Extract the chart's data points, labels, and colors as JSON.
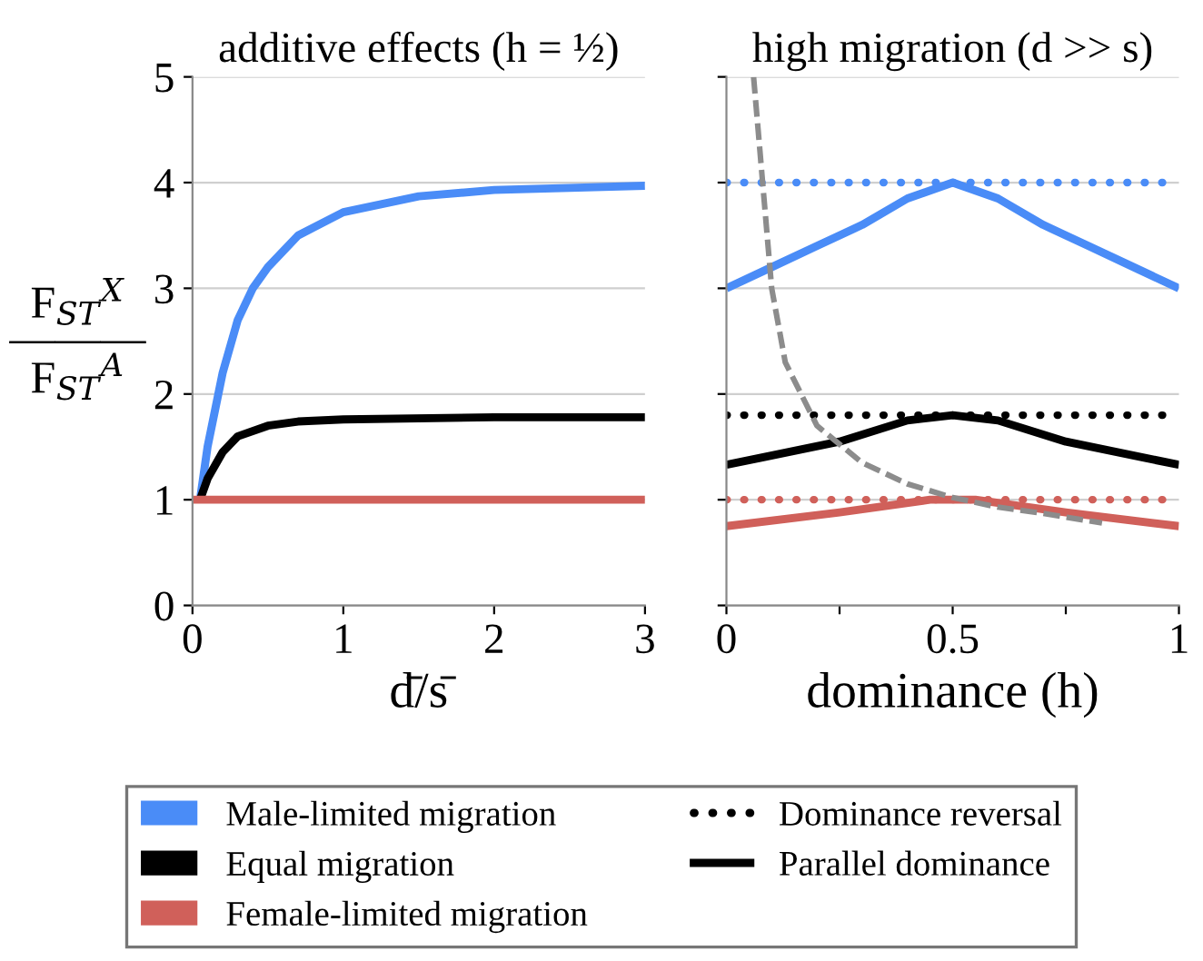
{
  "chart_data": [
    {
      "type": "line",
      "title": "additive effects (h = ½)",
      "xlabel": "d̄/s̄",
      "ylabel": "F$_{ST}$$^{X}$\n―――\nF$_{ST}$$^{A}$",
      "xlim": [
        0,
        3
      ],
      "xticks": [
        0,
        1,
        2,
        3
      ],
      "ylim": [
        0,
        5
      ],
      "yticks": [
        0,
        1,
        2,
        3,
        4,
        5
      ],
      "grid": "y",
      "legend": "bottom",
      "marker": "none",
      "series": [
        {
          "name": "Male-limited migration",
          "color": "#4a8cf7",
          "line_style": "solid",
          "x": [
            0.05,
            0.1,
            0.2,
            0.3,
            0.4,
            0.5,
            0.7,
            1,
            1.5,
            2,
            2.5,
            3
          ],
          "values": [
            1,
            1.5,
            2.2,
            2.7,
            3.0,
            3.2,
            3.5,
            3.72,
            3.87,
            3.93,
            3.95,
            3.97
          ]
        },
        {
          "name": "Equal migration",
          "color": "#000000",
          "line_style": "solid",
          "x": [
            0.05,
            0.1,
            0.2,
            0.3,
            0.5,
            0.7,
            1,
            2,
            3
          ],
          "values": [
            1,
            1.2,
            1.45,
            1.6,
            1.7,
            1.74,
            1.76,
            1.78,
            1.78
          ]
        },
        {
          "name": "Female-limited migration",
          "color": "#d0605a",
          "line_style": "solid",
          "x": [
            0,
            3
          ],
          "values": [
            1,
            1
          ]
        }
      ]
    },
    {
      "type": "line",
      "title": "high migration (d >> s)",
      "xlabel": "dominance (h)",
      "xlim": [
        0,
        1
      ],
      "xticks": [
        0,
        {
          "value": 0.25,
          "label": null
        },
        0.5,
        {
          "value": 0.75,
          "label": null
        },
        1
      ],
      "ylim": [
        0,
        5
      ],
      "yticks": [
        0,
        1,
        2,
        3,
        4,
        5
      ],
      "tick_labels": "x",
      "grid": "y",
      "legend": "bottom",
      "marker": "none",
      "series": [
        {
          "color": "#4a8cf7",
          "line_style": "dotted",
          "x": [
            0,
            1
          ],
          "values": [
            4,
            4
          ]
        },
        {
          "name": "Dominance reversal",
          "color": "#000000",
          "line_style": "dotted",
          "x": [
            0,
            1
          ],
          "values": [
            1.8,
            1.8
          ]
        },
        {
          "color": "#d0605a",
          "line_style": "dotted",
          "x": [
            0,
            1
          ],
          "values": [
            1,
            1
          ]
        },
        {
          "color": "#4a8cf7",
          "line_style": "solid",
          "x": [
            0,
            0.1,
            0.2,
            0.3,
            0.4,
            0.5,
            0.6,
            0.7,
            0.8,
            0.9,
            1
          ],
          "values": [
            3.0,
            3.2,
            3.4,
            3.6,
            3.85,
            4.0,
            3.85,
            3.6,
            3.4,
            3.2,
            3.0
          ]
        },
        {
          "name": "Parallel dominance",
          "color": "#000000",
          "line_style": "solid",
          "x": [
            0,
            0.25,
            0.4,
            0.5,
            0.6,
            0.75,
            1
          ],
          "values": [
            1.33,
            1.55,
            1.75,
            1.8,
            1.75,
            1.55,
            1.33
          ]
        },
        {
          "color": "#d0605a",
          "line_style": "solid",
          "x": [
            0,
            0.25,
            0.45,
            0.5,
            0.55,
            0.75,
            1
          ],
          "values": [
            0.75,
            0.88,
            1.0,
            1.0,
            1.0,
            0.88,
            0.75
          ]
        },
        {
          "color": "#8c8c8c",
          "line_style": "dashed",
          "x": [
            0.06,
            0.08,
            0.1,
            0.13,
            0.2,
            0.3,
            0.4,
            0.5,
            0.6,
            0.7,
            0.83
          ],
          "values": [
            5,
            4,
            3,
            2.3,
            1.7,
            1.35,
            1.15,
            1.02,
            0.93,
            0.87,
            0.78
          ]
        }
      ]
    }
  ]
}
